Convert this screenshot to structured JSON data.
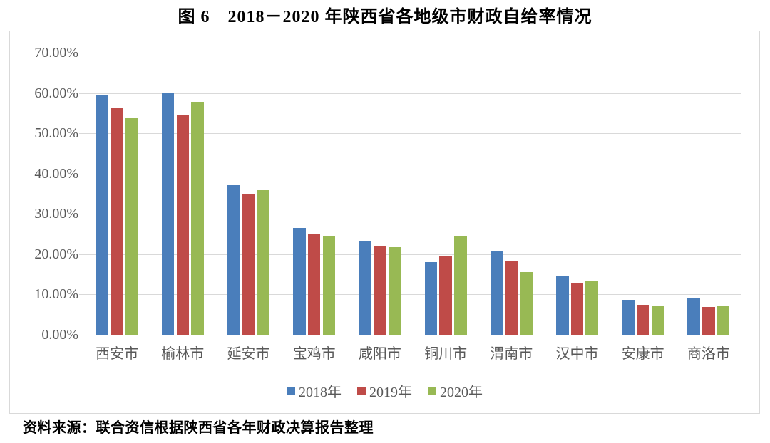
{
  "page": {
    "title": "图 6　2018－2020 年陕西省各地级市财政自给率情况",
    "source": "资料来源：联合资信根据陕西省各年财政决算报告整理"
  },
  "chart_data": {
    "type": "bar",
    "title": "图 6　2018－2020 年陕西省各地级市财政自给率情况",
    "categories": [
      "西安市",
      "榆林市",
      "延安市",
      "宝鸡市",
      "咸阳市",
      "铜川市",
      "渭南市",
      "汉中市",
      "安康市",
      "商洛市"
    ],
    "series": [
      {
        "name": "2018年",
        "color": "#4a7ebb",
        "values": [
          59.4,
          60.1,
          37.2,
          26.6,
          23.4,
          18.1,
          20.6,
          14.5,
          8.7,
          9.1
        ]
      },
      {
        "name": "2019年",
        "color": "#bf4b48",
        "values": [
          56.3,
          54.5,
          35.0,
          25.1,
          22.1,
          19.5,
          18.4,
          12.8,
          7.5,
          6.9
        ]
      },
      {
        "name": "2020年",
        "color": "#98b954",
        "values": [
          53.8,
          57.8,
          35.8,
          24.4,
          21.7,
          24.5,
          15.6,
          13.3,
          7.2,
          7.1
        ]
      }
    ],
    "xlabel": "",
    "ylabel": "",
    "ylim": [
      0,
      70
    ],
    "ytick_step": 10,
    "yticks": [
      "70.00%",
      "60.00%",
      "50.00%",
      "40.00%",
      "30.00%",
      "20.00%",
      "10.00%",
      "0.00%"
    ],
    "grid": true,
    "grid_color": "#d9d9d9",
    "axis_line_color": "#a6a6a6",
    "tick_label_color": "#595959",
    "legend_position": "bottom"
  }
}
